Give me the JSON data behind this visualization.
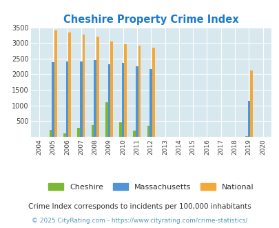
{
  "title": "Cheshire Property Crime Index",
  "years": [
    2004,
    2005,
    2006,
    2007,
    2008,
    2009,
    2010,
    2011,
    2012,
    2013,
    2014,
    2015,
    2016,
    2017,
    2018,
    2019,
    2020
  ],
  "cheshire": [
    0,
    220,
    110,
    290,
    380,
    1100,
    470,
    190,
    360,
    0,
    0,
    0,
    0,
    0,
    0,
    30,
    0
  ],
  "massachusetts": [
    0,
    2380,
    2400,
    2400,
    2450,
    2320,
    2360,
    2260,
    2160,
    0,
    0,
    0,
    0,
    0,
    0,
    1160,
    0
  ],
  "national": [
    0,
    3410,
    3340,
    3270,
    3210,
    3040,
    2960,
    2910,
    2860,
    0,
    0,
    0,
    0,
    0,
    0,
    2120,
    0
  ],
  "cheshire_color": "#7cb832",
  "massachusetts_color": "#4f94d4",
  "national_color": "#f5a835",
  "bg_color": "#d8e8ef",
  "title_color": "#1a7acc",
  "ylabel_max": 3500,
  "yticks": [
    0,
    500,
    1000,
    1500,
    2000,
    2500,
    3000,
    3500
  ],
  "footnote1": "Crime Index corresponds to incidents per 100,000 inhabitants",
  "footnote2": "© 2025 CityRating.com - https://www.cityrating.com/crime-statistics/",
  "bar_width": 0.18
}
